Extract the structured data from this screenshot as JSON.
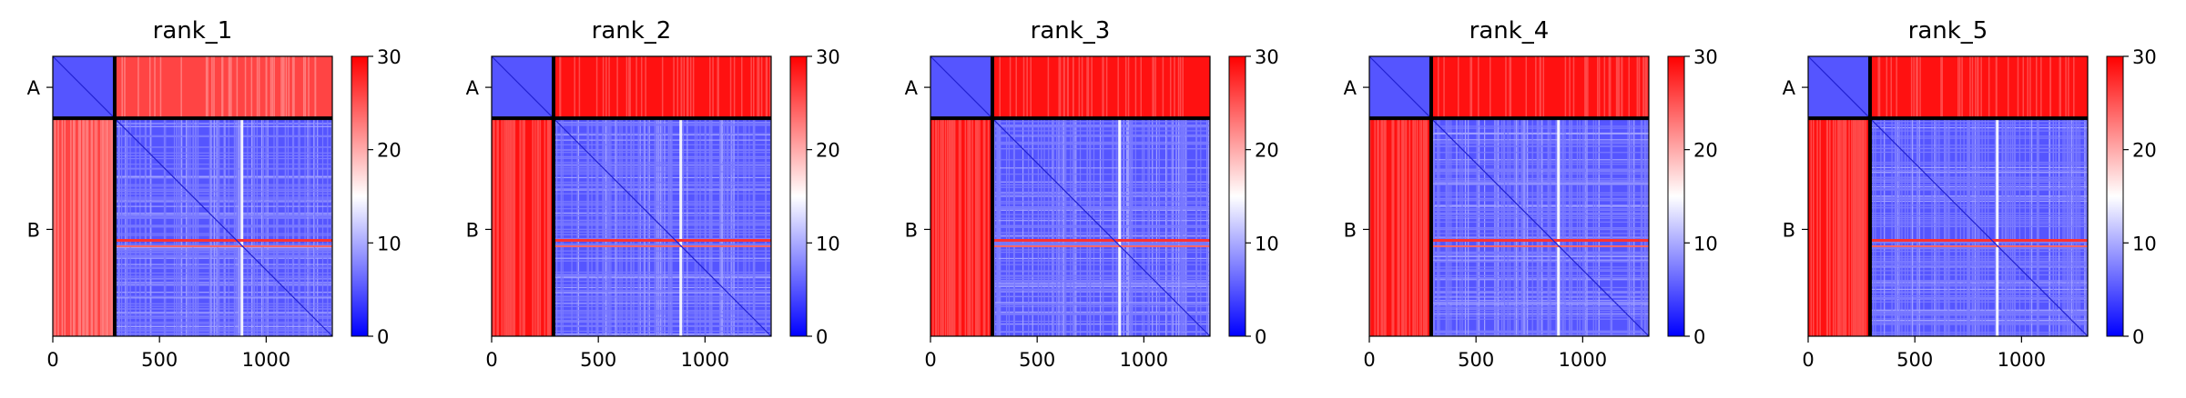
{
  "colors": {
    "low": "#0000ff",
    "mid": "#ffffff",
    "high": "#ff0000",
    "axis": "#000000"
  },
  "chart_data": {
    "type": "heatmap",
    "colorbar": {
      "range": [
        0,
        30
      ],
      "ticks": [
        0,
        10,
        20,
        30
      ],
      "colormap": "bwr"
    },
    "x_axis": {
      "range": [
        0,
        1310
      ],
      "ticks": [
        0,
        500,
        1000
      ]
    },
    "y_axis": {
      "tick_labels": [
        "A",
        "B"
      ],
      "tick_positions": [
        145,
        810
      ],
      "range": [
        0,
        1310
      ],
      "inverted": true
    },
    "chains": [
      {
        "name": "A",
        "start": 0,
        "end": 290
      },
      {
        "name": "B",
        "start": 290,
        "end": 1310
      }
    ],
    "panels": [
      {
        "title": "rank_1",
        "inter_chain_mean": 26,
        "intra_chain_mean": 5
      },
      {
        "title": "rank_2",
        "inter_chain_mean": 29,
        "intra_chain_mean": 5
      },
      {
        "title": "rank_3",
        "inter_chain_mean": 29,
        "intra_chain_mean": 5
      },
      {
        "title": "rank_4",
        "inter_chain_mean": 29,
        "intra_chain_mean": 5
      },
      {
        "title": "rank_5",
        "inter_chain_mean": 29,
        "intra_chain_mean": 5
      }
    ]
  }
}
